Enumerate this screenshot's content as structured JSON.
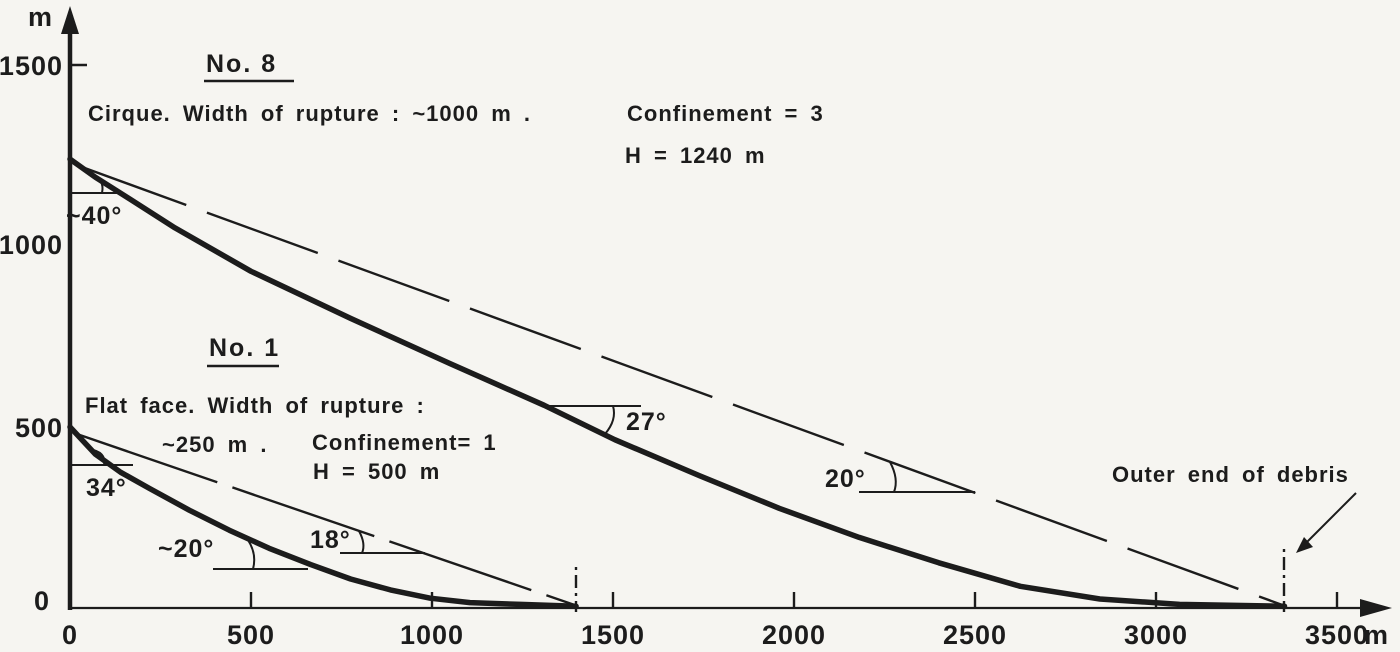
{
  "figure": {
    "background": "#f6f5f1",
    "ink": "#1c1c1c",
    "y_axis": {
      "unit": "m",
      "ticks": [
        "1500",
        "1000",
        "500",
        "0"
      ]
    },
    "x_axis": {
      "unit": "m",
      "ticks": [
        "0",
        "500",
        "1000",
        "1500",
        "2000",
        "2500",
        "3000",
        "3500"
      ]
    },
    "no8": {
      "title": "No. 8",
      "desc": "Cirque. Width of rupture : ~1000 m .",
      "confinement": "Confinement  =  3",
      "height": "H = 1240 m",
      "angle_top": "~40°",
      "angle_mid": "27°",
      "angle_line": "20°"
    },
    "no1": {
      "title": "No. 1",
      "desc": "Flat face. Width of rupture :",
      "width_line": "~250 m .",
      "confinement": "Confinement= 1",
      "height": "H = 500 m",
      "angle_top": "34°",
      "angle_mid": "~20°",
      "angle_line": "18°"
    },
    "outer_end_label": "Outer end of debris"
  },
  "chart_data": {
    "type": "line",
    "xlabel": "m",
    "ylabel": "m",
    "xlim": [
      0,
      3650
    ],
    "ylim": [
      0,
      1650
    ],
    "x_ticks": [
      0,
      500,
      1000,
      1500,
      2000,
      2500,
      3000,
      3500
    ],
    "y_ticks": [
      0,
      500,
      1000,
      1500
    ],
    "grid": false,
    "series": [
      {
        "name": "No. 8 slope profile (Cirque, H = 1240 m, confinement 3)",
        "style": "thick solid",
        "x": [
          0,
          70,
          165,
          290,
          500,
          775,
          1050,
          1310,
          1505,
          1740,
          1960,
          2180,
          2400,
          2625,
          2845,
          3065,
          3355
        ],
        "y": [
          1240,
          1190,
          1130,
          1050,
          930,
          800,
          675,
          560,
          465,
          365,
          275,
          195,
          125,
          60,
          25,
          10,
          5
        ]
      },
      {
        "name": "No. 1 slope profile (Flat face, H = 500 m, confinement 1)",
        "style": "thick solid",
        "x": [
          0,
          70,
          140,
          220,
          330,
          440,
          550,
          665,
          775,
          885,
          995,
          1105,
          1245,
          1398
        ],
        "y": [
          500,
          425,
          375,
          330,
          270,
          215,
          165,
          120,
          80,
          50,
          27,
          15,
          10,
          5
        ]
      },
      {
        "name": "No. 8 crown-to-debris line (20°)",
        "style": "thin dashed",
        "x": [
          15,
          3350
        ],
        "y": [
          1225,
          8
        ]
      },
      {
        "name": "No. 1 crown-to-debris line (18°)",
        "style": "thin dashed",
        "x": [
          15,
          1395
        ],
        "y": [
          482,
          8
        ]
      }
    ],
    "outer_end_of_debris_x": {
      "no8": 3355,
      "no1": 1398
    },
    "annotations": [
      {
        "text": "~40°",
        "x": 100,
        "y": 1065
      },
      {
        "text": "27°",
        "x": 1600,
        "y": 520
      },
      {
        "text": "20°",
        "x": 2155,
        "y": 360
      },
      {
        "text": "34°",
        "x": 100,
        "y": 330
      },
      {
        "text": "~20°",
        "x": 350,
        "y": 165
      },
      {
        "text": "18°",
        "x": 720,
        "y": 190
      },
      {
        "text": "Outer end of debris",
        "x": 3235,
        "y": 365
      }
    ]
  }
}
